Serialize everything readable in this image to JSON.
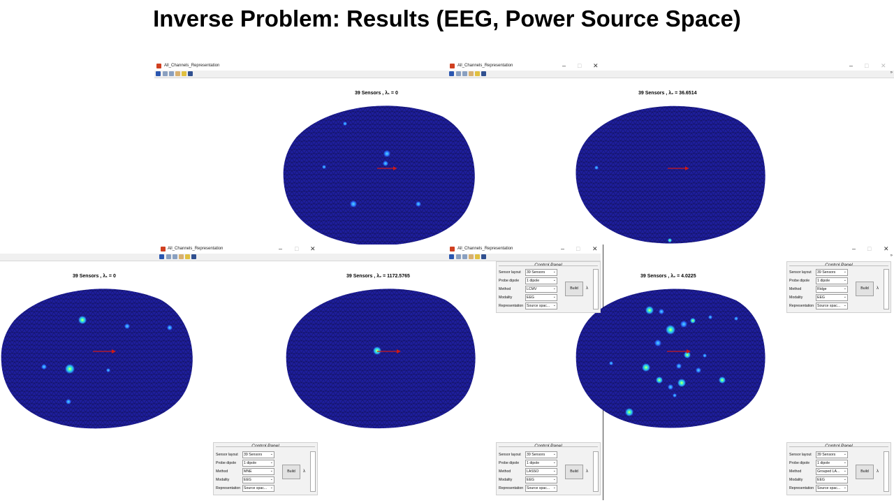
{
  "slide": {
    "title": "Inverse Problem: Results (EEG, Power Source Space)"
  },
  "window_title": "All_Channels_Representation",
  "window_controls": {
    "minimize": "–",
    "maximize": "□",
    "close": "✕"
  },
  "panel_labels": {
    "title": "Control Panel",
    "sensor_layout": "Sensor layout",
    "probe_dipole": "Probe dipole",
    "method": "Method",
    "modality": "Modality",
    "representation": "Representation",
    "build": "Build",
    "lambda": "λ"
  },
  "plots": [
    {
      "title": "39 Sensors , λ₁ = 0",
      "hotspots": "low"
    },
    {
      "title": "39 Sensors , λ₂ = 36.6514",
      "hotspots": "minimal"
    },
    {
      "title": "39 Sensors , λ₁ = 0",
      "hotspots": "sparse"
    },
    {
      "title": "39 Sensors , λ₂ = 1172.5765",
      "hotspots": "single"
    },
    {
      "title": "39 Sensors , λ₂ = 4.0225",
      "hotspots": "many"
    }
  ],
  "panels": [
    {
      "sensor_layout": "39 Sensors",
      "probe_dipole": "1 dipole",
      "method": "LCMV",
      "modality": "EEG",
      "representation": "Source spac..."
    },
    {
      "sensor_layout": "39 Sensors",
      "probe_dipole": "1 dipole",
      "method": "Ridge",
      "modality": "EEG",
      "representation": "Source spac..."
    },
    {
      "sensor_layout": "39 Sensors",
      "probe_dipole": "1 dipole",
      "method": "MNE",
      "modality": "EEG",
      "representation": "Source spac..."
    },
    {
      "sensor_layout": "39 Sensors",
      "probe_dipole": "1 dipole",
      "method": "LASSO",
      "modality": "EEG",
      "representation": "Source spac..."
    },
    {
      "sensor_layout": "39 Sensors",
      "probe_dipole": "1 dipole",
      "method": "Grouped LA...",
      "modality": "EEG",
      "representation": "Source spac..."
    }
  ],
  "colors": {
    "head_fill": "#1e1e9c",
    "mesh_line": "#0b0b3a",
    "dipole_arrow": "#cc1a1a",
    "hotspot": "#28c8ff"
  }
}
